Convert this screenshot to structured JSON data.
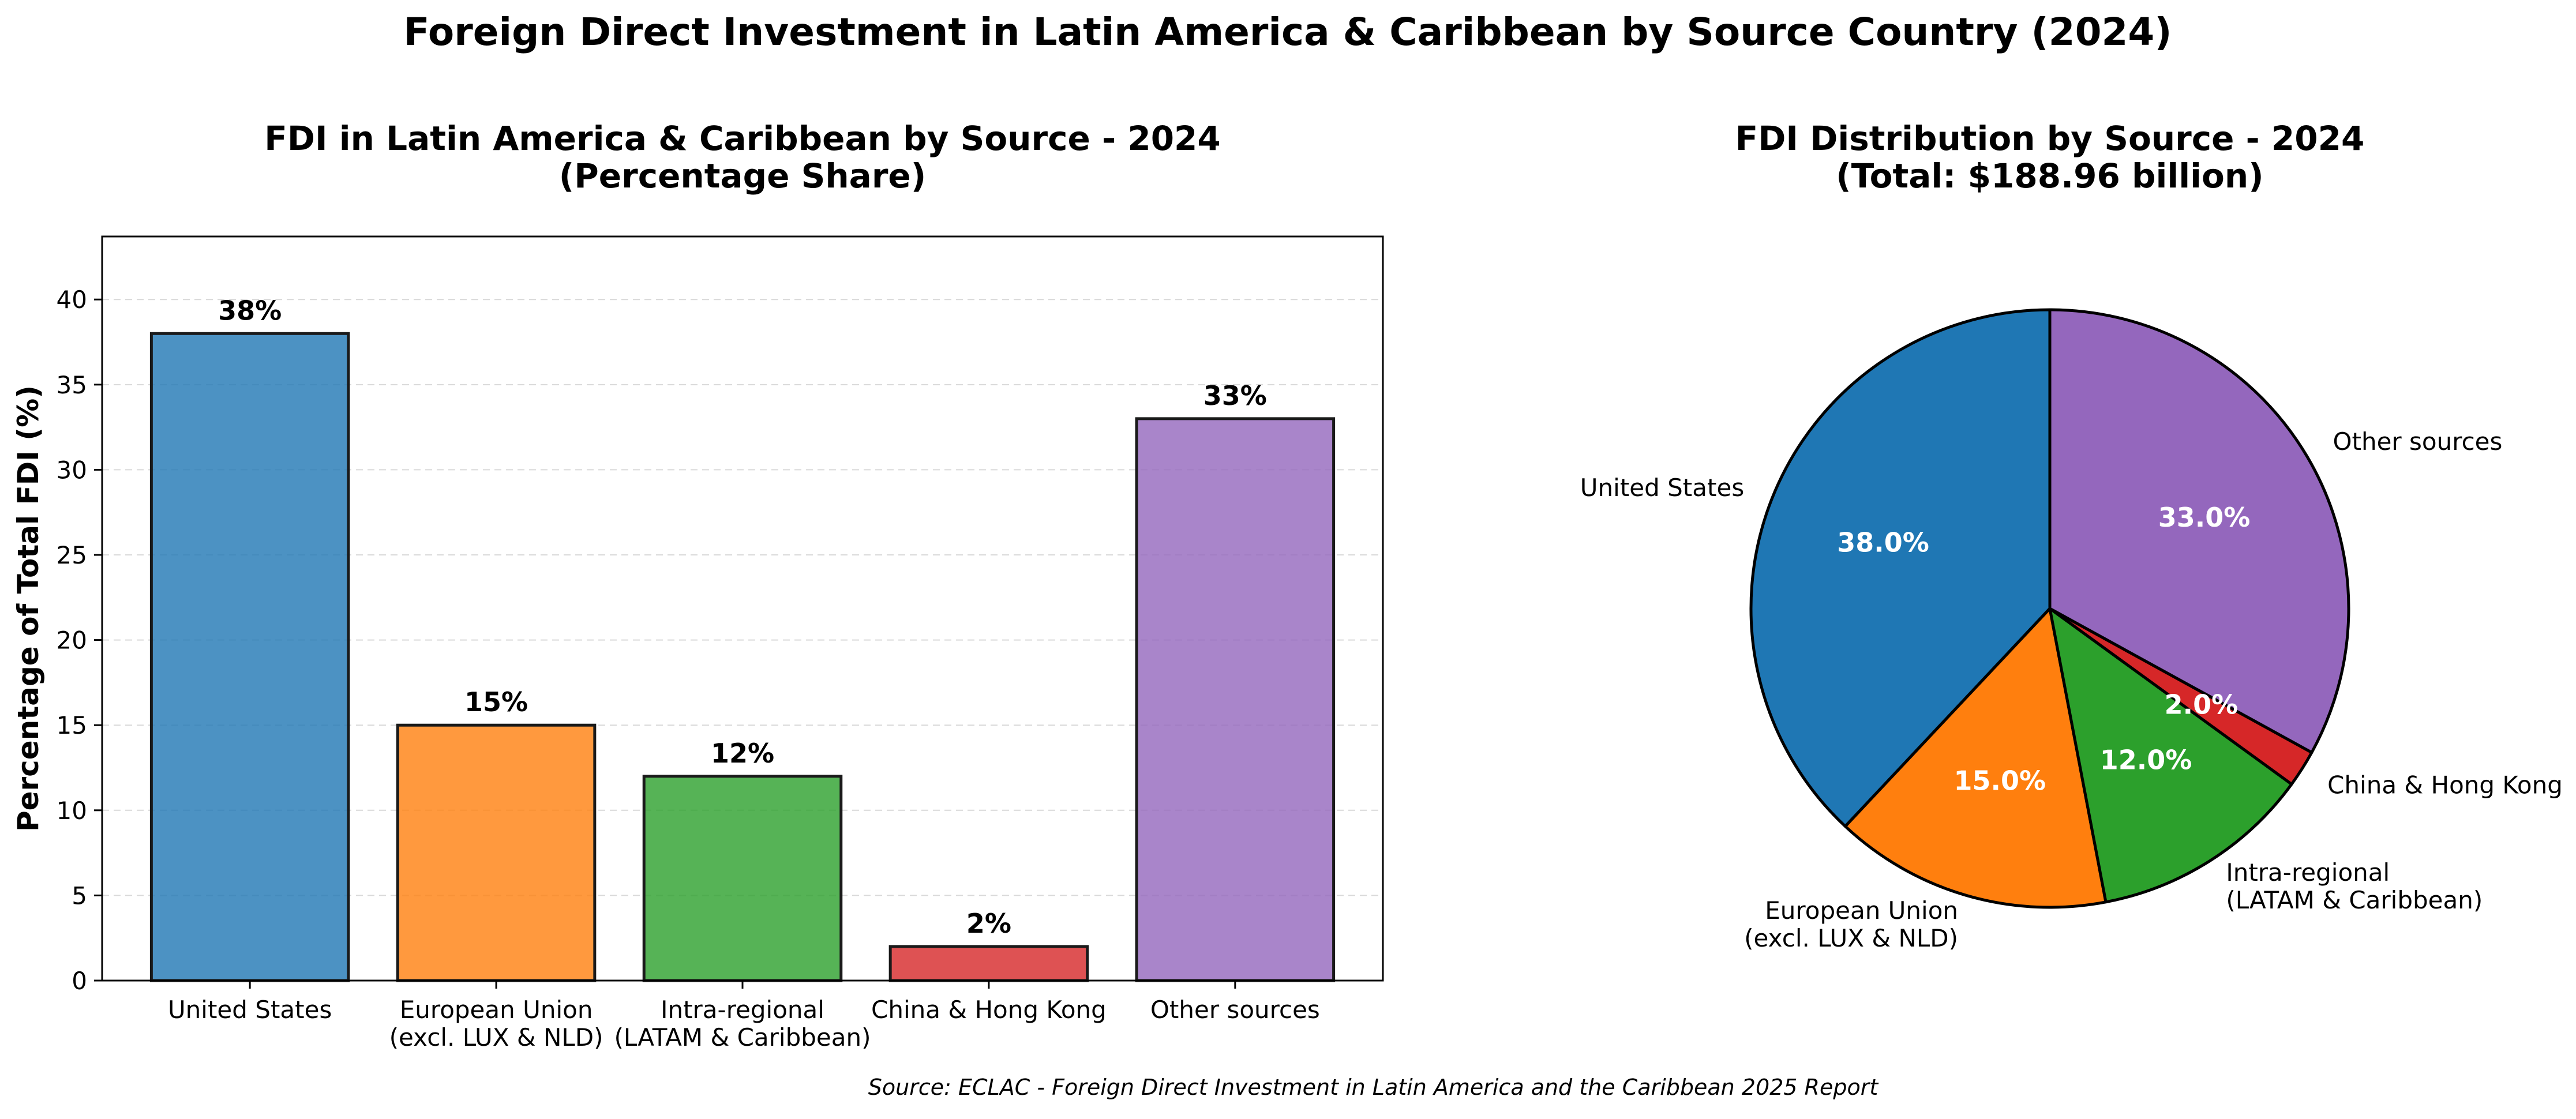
{
  "figure": {
    "title": "Foreign Direct Investment in Latin America & Caribbean by Source Country (2024)",
    "source": "Source: ECLAC - Foreign Direct Investment in Latin America and the Caribbean 2025 Report"
  },
  "colors": {
    "united_states": "#1f77b4",
    "european_union": "#ff7f0e",
    "intra_regional": "#2ca02c",
    "china_hong_kong": "#d62728",
    "other_sources": "#9467bd",
    "grid": "#d9d9d9",
    "edge": "#1a1a1a"
  },
  "chart_data": [
    {
      "type": "bar",
      "title_line1": "FDI in Latin America & Caribbean by Source - 2024",
      "title_line2": "(Percentage Share)",
      "xlabel": "",
      "ylabel": "Percentage of Total FDI (%)",
      "ylim": [
        0,
        43.7
      ],
      "yticks": [
        0,
        5,
        10,
        15,
        20,
        25,
        30,
        35,
        40
      ],
      "grid": "y-dashed",
      "categories": [
        [
          "United States"
        ],
        [
          "European Union",
          "(excl. LUX & NLD)"
        ],
        [
          "Intra-regional",
          "(LATAM & Caribbean)"
        ],
        [
          "China & Hong Kong"
        ],
        [
          "Other sources"
        ]
      ],
      "values": [
        38,
        15,
        12,
        2,
        33
      ],
      "data_labels": [
        "38%",
        "15%",
        "12%",
        "2%",
        "33%"
      ],
      "colors": [
        "#1f77b4",
        "#ff7f0e",
        "#2ca02c",
        "#d62728",
        "#9467bd"
      ]
    },
    {
      "type": "pie",
      "title_line1": "FDI Distribution by Source - 2024",
      "title_line2": "(Total: $188.96 billion)",
      "labels": [
        [
          "United States"
        ],
        [
          "European Union",
          "(excl. LUX & NLD)"
        ],
        [
          "Intra-regional",
          "(LATAM & Caribbean)"
        ],
        [
          "China & Hong Kong"
        ],
        [
          "Other sources"
        ]
      ],
      "values": [
        38.0,
        15.0,
        12.0,
        2.0,
        33.0
      ],
      "pct_labels": [
        "38.0%",
        "15.0%",
        "12.0%",
        "2.0%",
        "33.0%"
      ],
      "colors": [
        "#1f77b4",
        "#ff7f0e",
        "#2ca02c",
        "#d62728",
        "#9467bd"
      ],
      "start_angle": "12 o'clock",
      "direction": "counterclockwise"
    }
  ]
}
